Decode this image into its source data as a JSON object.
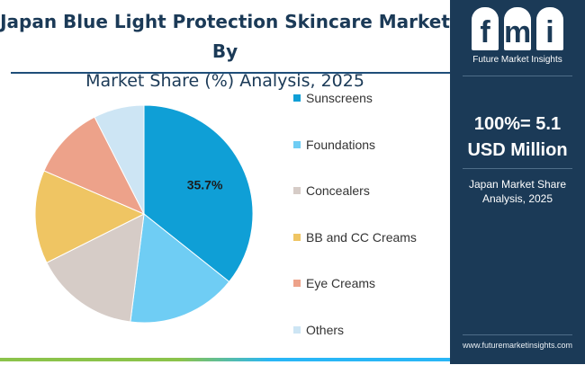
{
  "header": {
    "title_line1": "Japan Blue Light Protection Skincare Market By",
    "title_line2": "Market Share (%) Analysis, 2025"
  },
  "sidebar": {
    "logo_letters": [
      "f",
      "m",
      "i"
    ],
    "logo_subtitle": "Future Market Insights",
    "headline_line1": "100%= 5.1",
    "headline_line2": "USD Million",
    "caption_line1": "Japan Market Share",
    "caption_line2": "Analysis, 2025",
    "url": "www.futuremarketinsights.com",
    "background_color": "#1b3a57"
  },
  "chart_data": {
    "type": "pie",
    "start_angle_deg": 0,
    "direction": "clockwise",
    "slices": [
      {
        "label": "Sunscreens",
        "value": 35.7,
        "color": "#0f9fd6",
        "data_label": "35.7%"
      },
      {
        "label": "Foundations",
        "value": 16.3,
        "color": "#6fcdf4",
        "data_label": ""
      },
      {
        "label": "Concealers",
        "value": 15.6,
        "color": "#d6ccc7",
        "data_label": ""
      },
      {
        "label": "BB and CC Creams",
        "value": 13.9,
        "color": "#efc563",
        "data_label": ""
      },
      {
        "label": "Eye Creams",
        "value": 11.0,
        "color": "#eda28a",
        "data_label": ""
      },
      {
        "label": "Others",
        "value": 7.5,
        "color": "#cde5f4",
        "data_label": ""
      }
    ]
  }
}
